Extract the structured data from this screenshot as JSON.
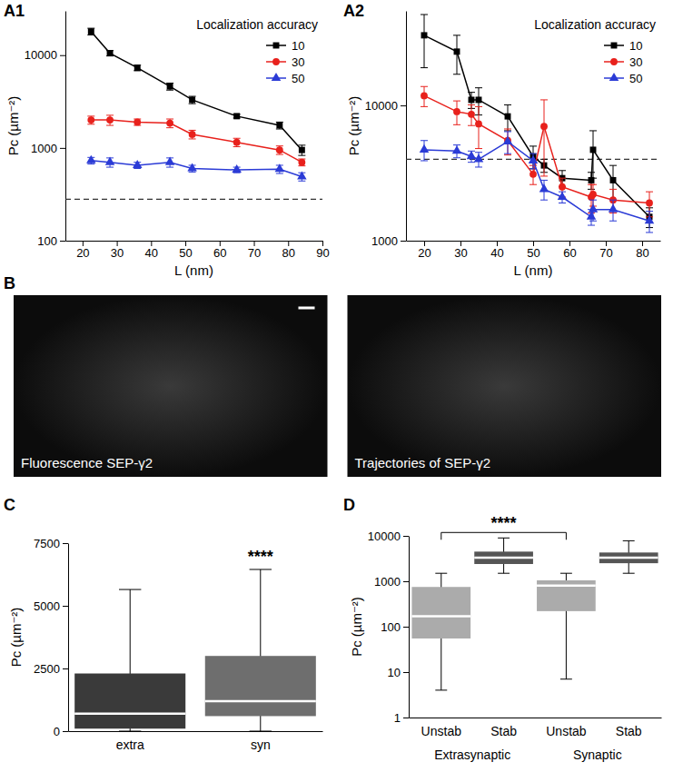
{
  "chart_data": [
    {
      "type": "line",
      "panel": "A1",
      "x_label": "L (nm)",
      "y_label": "Pc (µm⁻²)",
      "log": "y",
      "grid": false,
      "legend": "upper right",
      "legend_title": "Localization accuracy",
      "xlim": [
        15,
        90
      ],
      "xticks": [
        20,
        30,
        40,
        50,
        60,
        70,
        80,
        90
      ],
      "ylim": [
        100,
        30000
      ],
      "yticks": [
        100,
        1000,
        10000
      ],
      "x": [
        22.5,
        28,
        36,
        45.5,
        52,
        65,
        77.5,
        84
      ],
      "hline": {
        "value": 280,
        "line_style": "dashed"
      },
      "series": [
        {
          "name": "10",
          "color": "#000000",
          "marker": "square",
          "values": [
            18000,
            10500,
            7300,
            4600,
            3300,
            2200,
            1750,
            950
          ],
          "errors": [
            1500,
            700,
            500,
            400,
            300,
            100,
            150,
            120
          ]
        },
        {
          "name": "30",
          "color": "#e8211c",
          "marker": "circle",
          "values": [
            2000,
            2000,
            1900,
            1850,
            1400,
            1150,
            950,
            700
          ],
          "errors": [
            200,
            250,
            150,
            200,
            150,
            120,
            100,
            60
          ]
        },
        {
          "name": "50",
          "color": "#2b3bd6",
          "marker": "triangle",
          "values": [
            730,
            700,
            650,
            700,
            600,
            580,
            590,
            490
          ],
          "errors": [
            60,
            80,
            50,
            80,
            50,
            40,
            60,
            50
          ]
        }
      ]
    },
    {
      "type": "line",
      "panel": "A2",
      "x_label": "L (nm)",
      "y_label": "Pc (µm⁻²)",
      "log": "y",
      "grid": false,
      "legend": "upper right",
      "legend_title": "Localization accuracy",
      "xlim": [
        15,
        85
      ],
      "xticks": [
        20,
        30,
        40,
        50,
        60,
        70,
        80
      ],
      "ylim": [
        1000,
        50000
      ],
      "yticks": [
        1000,
        10000
      ],
      "x": [
        20,
        29,
        33,
        35,
        43,
        50,
        53,
        58,
        66,
        66.5,
        72,
        82
      ],
      "hline": {
        "value": 4000,
        "line_style": "dashed"
      },
      "series": [
        {
          "name": "10",
          "color": "#000000",
          "marker": "square",
          "values": [
            33000,
            25000,
            11000,
            11000,
            8300,
            4200,
            3600,
            2900,
            2800,
            4700,
            2800,
            1500
          ],
          "errors": [
            14000,
            8000,
            1500,
            2500,
            1800,
            800,
            400,
            400,
            400,
            1800,
            800,
            250
          ]
        },
        {
          "name": "30",
          "color": "#e8211c",
          "marker": "circle",
          "values": [
            11800,
            9000,
            8600,
            7300,
            5500,
            3100,
            7000,
            2500,
            2100,
            2200,
            2000,
            1900
          ],
          "errors": [
            2000,
            1800,
            1500,
            2500,
            1200,
            500,
            4000,
            400,
            500,
            400,
            400,
            400
          ]
        },
        {
          "name": "50",
          "color": "#2b3bd6",
          "marker": "triangle",
          "values": [
            4700,
            4600,
            4200,
            4000,
            5400,
            3900,
            2400,
            2100,
            1500,
            1700,
            1700,
            1400
          ],
          "errors": [
            800,
            500,
            400,
            500,
            1000,
            500,
            400,
            200,
            200,
            300,
            300,
            250
          ]
        }
      ]
    },
    {
      "type": "image",
      "panel": "B",
      "captions": [
        "Fluorescence SEP-γ2",
        "Trajectories of SEP-γ2"
      ]
    },
    {
      "type": "box",
      "panel": "C",
      "y_label": "Pc (µm⁻²)",
      "grid": false,
      "categories": [
        "extra",
        "syn"
      ],
      "colors": [
        "#3a3a3a",
        "#6e6e6e"
      ],
      "ylim": [
        0,
        7500
      ],
      "yticks": [
        0,
        2500,
        5000,
        7500
      ],
      "boxes": [
        {
          "min": 0,
          "q1": 100,
          "median": 700,
          "q3": 2300,
          "max": 5650
        },
        {
          "min": 0,
          "q1": 600,
          "median": 1200,
          "q3": 3000,
          "max": 6450
        }
      ],
      "annotations": [
        {
          "text": "****",
          "categories": [
            1
          ]
        }
      ]
    },
    {
      "type": "box",
      "panel": "D",
      "y_label": "Pc (µm⁻²)",
      "grid": false,
      "log": "y",
      "categories": [
        "Unstab",
        "Stab",
        "Unstab",
        "Stab"
      ],
      "category_groups": [
        "Extrasynaptic",
        "Extrasynaptic",
        "Synaptic",
        "Synaptic"
      ],
      "colors": [
        "#ababab",
        "#555555",
        "#ababab",
        "#555555"
      ],
      "ylim": [
        1,
        10000
      ],
      "yticks": [
        1,
        10,
        100,
        1000,
        10000
      ],
      "boxes": [
        {
          "min": 4,
          "q1": 55,
          "median": 170,
          "q3": 750,
          "max": 1500
        },
        {
          "min": 1500,
          "q1": 2400,
          "median": 3300,
          "q3": 4500,
          "max": 9000
        },
        {
          "min": 7,
          "q1": 220,
          "median": 800,
          "q3": 1050,
          "max": 1500
        },
        {
          "min": 1500,
          "q1": 2500,
          "median": 3300,
          "q3": 4300,
          "max": 7800
        }
      ],
      "annotations": [
        {
          "text": "****",
          "categories": [
            0,
            2
          ]
        }
      ]
    }
  ]
}
